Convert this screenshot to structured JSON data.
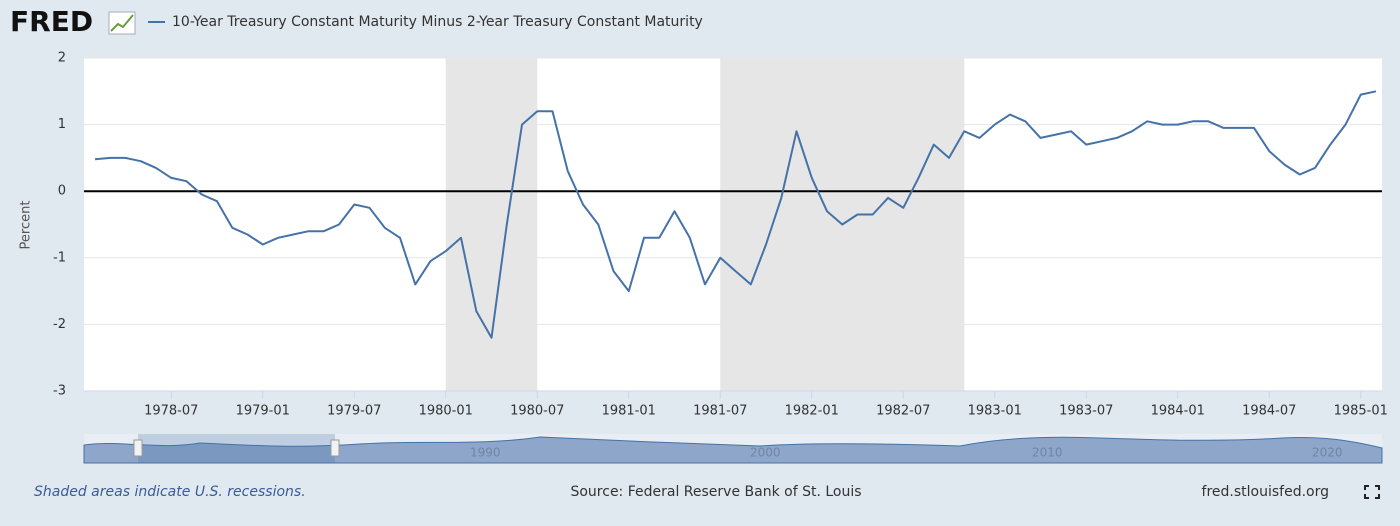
{
  "logo": "FRED",
  "chart_data": {
    "type": "line",
    "y_label": "Percent",
    "x": [
      "1978-02",
      "1978-03",
      "1978-04",
      "1978-05",
      "1978-06",
      "1978-07",
      "1978-08",
      "1978-09",
      "1978-10",
      "1978-11",
      "1978-12",
      "1979-01",
      "1979-02",
      "1979-03",
      "1979-04",
      "1979-05",
      "1979-06",
      "1979-07",
      "1979-08",
      "1979-09",
      "1979-10",
      "1979-11",
      "1979-12",
      "1980-01",
      "1980-02",
      "1980-03",
      "1980-04",
      "1980-05",
      "1980-06",
      "1980-07",
      "1980-08",
      "1980-09",
      "1980-10",
      "1980-11",
      "1980-12",
      "1981-01",
      "1981-02",
      "1981-03",
      "1981-04",
      "1981-05",
      "1981-06",
      "1981-07",
      "1981-08",
      "1981-09",
      "1981-10",
      "1981-11",
      "1981-12",
      "1982-01",
      "1982-02",
      "1982-03",
      "1982-04",
      "1982-05",
      "1982-06",
      "1982-07",
      "1982-08",
      "1982-09",
      "1982-10",
      "1982-11",
      "1982-12",
      "1983-01",
      "1983-02",
      "1983-03",
      "1983-04",
      "1983-05",
      "1983-06",
      "1983-07",
      "1983-08",
      "1983-09",
      "1983-10",
      "1983-11",
      "1983-12",
      "1984-01",
      "1984-02",
      "1984-03",
      "1984-04",
      "1984-05",
      "1984-06",
      "1984-07",
      "1984-08",
      "1984-09",
      "1984-10",
      "1984-11",
      "1984-12",
      "1985-01",
      "1985-02"
    ],
    "series": [
      {
        "name": "10-Year Treasury Constant Maturity Minus 2-Year Treasury Constant Maturity",
        "color": "#4572a7",
        "values": [
          0.48,
          0.5,
          0.5,
          0.45,
          0.35,
          0.2,
          0.15,
          -0.05,
          -0.15,
          -0.55,
          -0.65,
          -0.8,
          -0.7,
          -0.65,
          -0.6,
          -0.6,
          -0.5,
          -0.2,
          -0.25,
          -0.55,
          -0.7,
          -1.4,
          -1.05,
          -0.9,
          -0.7,
          -1.8,
          -2.2,
          -0.5,
          1.0,
          1.2,
          1.2,
          0.3,
          -0.2,
          -0.5,
          -1.2,
          -1.5,
          -0.7,
          -0.7,
          -0.3,
          -0.7,
          -1.4,
          -1.0,
          -1.2,
          -1.4,
          -0.8,
          -0.1,
          0.9,
          0.2,
          -0.3,
          -0.5,
          -0.35,
          -0.35,
          -0.1,
          -0.25,
          0.2,
          0.7,
          0.5,
          0.9,
          0.8,
          1.0,
          1.15,
          1.05,
          0.8,
          0.85,
          0.9,
          0.7,
          0.75,
          0.8,
          0.9,
          1.05,
          1.0,
          1.0,
          1.05,
          1.05,
          0.95,
          0.95,
          0.95,
          0.6,
          0.4,
          0.25,
          0.35,
          0.7,
          1.0,
          1.45,
          1.5
        ]
      }
    ],
    "xlim": [
      "1978-02",
      "1985-02"
    ],
    "xticks": [
      "1978-07",
      "1979-01",
      "1979-07",
      "1980-01",
      "1980-07",
      "1981-01",
      "1981-07",
      "1982-01",
      "1982-07",
      "1983-01",
      "1983-07",
      "1984-01",
      "1984-07",
      "1985-01"
    ],
    "ylim": [
      -3,
      2
    ],
    "yticks": [
      2,
      1,
      0,
      -1,
      -2,
      -3
    ],
    "grid": true,
    "recessions": [
      [
        "1980-01",
        "1980-07"
      ],
      [
        "1981-07",
        "1982-11"
      ]
    ]
  },
  "navigator_labels": [
    "1990",
    "2000",
    "2010",
    "2020"
  ],
  "footer": {
    "note": "Shaded areas indicate U.S. recessions.",
    "source": "Source: Federal Reserve Bank of St. Louis",
    "site": "fred.stlouisfed.org"
  }
}
